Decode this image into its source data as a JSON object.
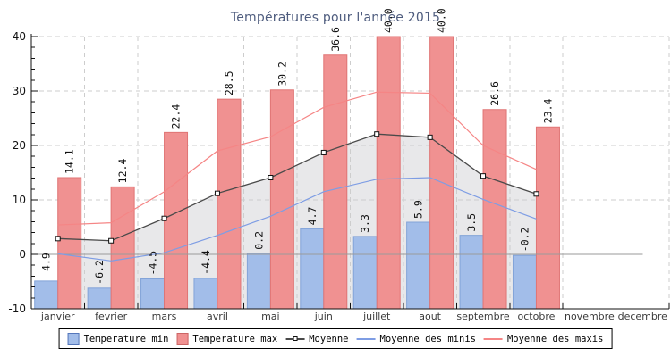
{
  "title": "Températures pour l'année 2015",
  "title_color": "#4e5c7e",
  "legend": {
    "items": [
      {
        "label": "Temperature min",
        "glyph": "swatch",
        "color": "#a2bde9",
        "border": "#5577bb"
      },
      {
        "label": "Temperature max",
        "glyph": "swatch",
        "color": "#f09191",
        "border": "#cc6666"
      },
      {
        "label": "Moyenne",
        "glyph": "line-marker",
        "color": "#4a4a4a"
      },
      {
        "label": "Moyenne des minis",
        "glyph": "line",
        "color": "#7e9de4"
      },
      {
        "label": "Moyenne des maxis",
        "glyph": "line",
        "color": "#f58585"
      }
    ]
  },
  "y_axis": {
    "tick_values": [
      40,
      30,
      20,
      10,
      0,
      -10
    ],
    "tick_labels": [
      "40",
      "30",
      "20",
      "10",
      "0",
      "-10"
    ]
  },
  "chart_data": {
    "type": "bar",
    "title": "Températures pour l'année 2015",
    "categories": [
      "janvier",
      "fevrier",
      "mars",
      "avril",
      "mai",
      "juin",
      "juillet",
      "aout",
      "septembre",
      "octobre",
      "novembre",
      "decembre"
    ],
    "ylim": [
      -10,
      40
    ],
    "bars_baseline": -10,
    "grid": "dashed",
    "zero_line": true,
    "legend_position": "bottom",
    "series": [
      {
        "name": "Temperature min",
        "type": "bar",
        "color": "#a2bde9",
        "border": "#82a3d8",
        "values": [
          -4.9,
          -6.2,
          -4.5,
          -4.4,
          0.2,
          4.7,
          3.3,
          5.9,
          3.5,
          -0.2,
          null,
          null
        ],
        "labels": [
          "-4.9",
          "-6.2",
          "-4.5",
          "-4.4",
          "0.2",
          "4.7",
          "3.3",
          "5.9",
          "3.5",
          "-0.2",
          null,
          null
        ]
      },
      {
        "name": "Temperature max",
        "type": "bar",
        "color": "#f09191",
        "border": "#e07575",
        "values": [
          14.1,
          12.4,
          22.4,
          28.5,
          30.2,
          36.6,
          40.0,
          40.0,
          26.6,
          23.4,
          null,
          null
        ],
        "labels": [
          "14.1",
          "12.4",
          "22.4",
          "28.5",
          "30.2",
          "36.6",
          "40.0",
          "40.0",
          "26.6",
          "23.4",
          null,
          null
        ]
      },
      {
        "name": "Moyenne",
        "type": "line",
        "color": "#4a4a4a",
        "marker": "square",
        "area_fill": "#e8e8ea",
        "values": [
          2.9,
          2.5,
          6.6,
          11.2,
          14.1,
          18.7,
          22.1,
          21.5,
          14.4,
          11.1,
          null,
          null
        ]
      },
      {
        "name": "Moyenne des minis",
        "type": "line",
        "color": "#7e9de4",
        "values": [
          0.1,
          -1.2,
          0.3,
          3.5,
          7.0,
          11.5,
          13.8,
          14.1,
          10.1,
          6.5,
          null,
          null
        ]
      },
      {
        "name": "Moyenne des maxis",
        "type": "line",
        "color": "#f58585",
        "values": [
          5.4,
          5.8,
          11.5,
          19.0,
          21.6,
          27.0,
          29.8,
          29.6,
          20.0,
          15.6,
          null,
          null
        ]
      }
    ]
  }
}
